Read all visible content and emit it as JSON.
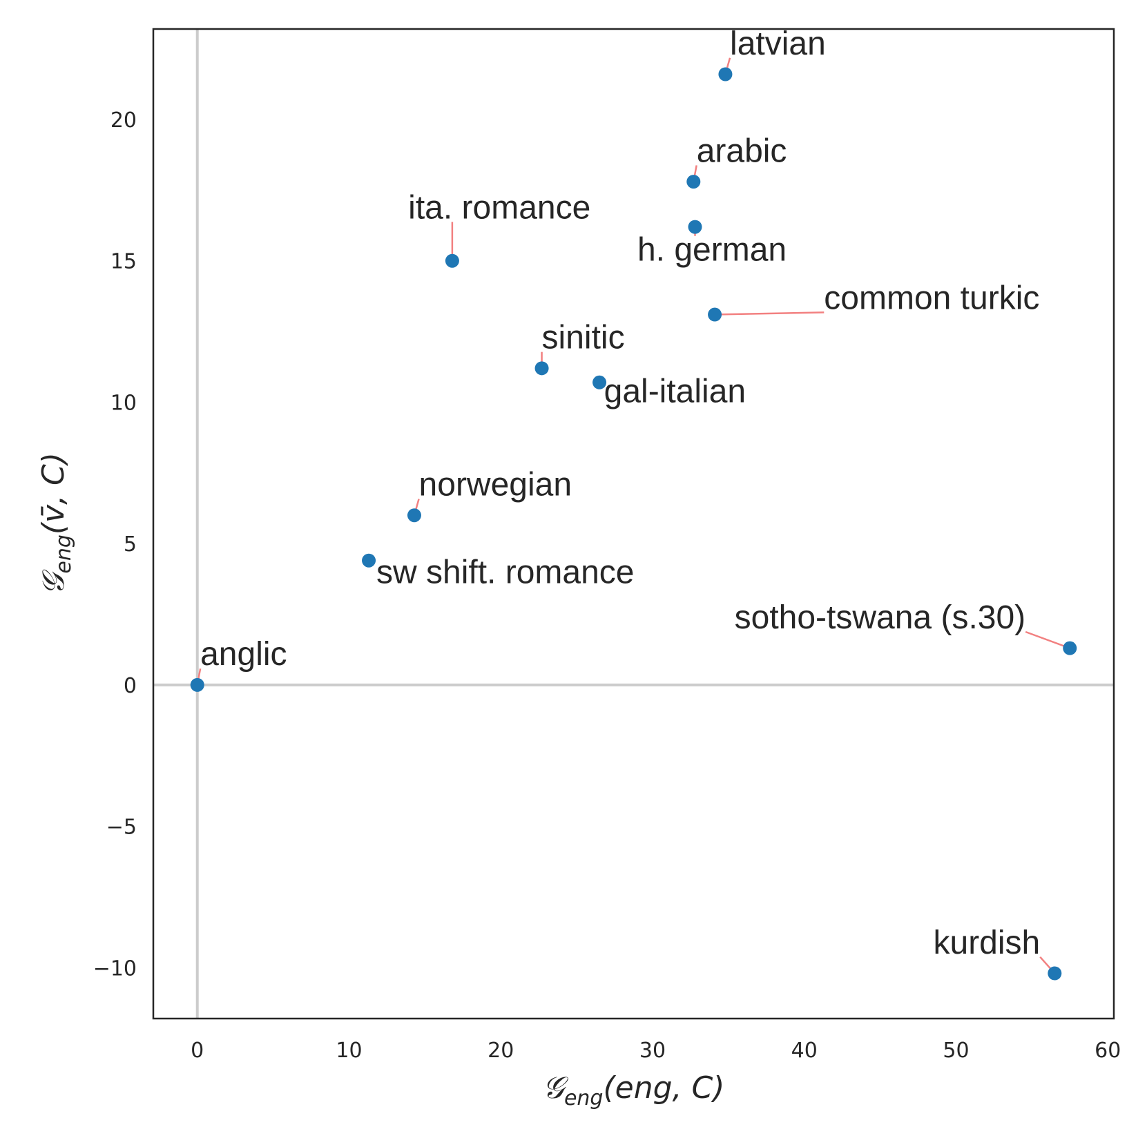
{
  "chart_data": {
    "type": "scatter",
    "title": "",
    "xlabel": {
      "main": "𝒢",
      "sub": "eng",
      "rest": "(eng, C)"
    },
    "ylabel": {
      "main": "𝒢",
      "sub": "eng",
      "rest": "(v̄, C)"
    },
    "xlim": [
      -2.9,
      60.4
    ],
    "ylim": [
      -11.8,
      23.2
    ],
    "xticks": [
      0,
      10,
      20,
      30,
      40,
      50,
      60
    ],
    "yticks": [
      -10,
      -5,
      0,
      5,
      10,
      15,
      20
    ],
    "xtick_labels": [
      "0",
      "10",
      "20",
      "30",
      "40",
      "50",
      "60"
    ],
    "ytick_labels": [
      "−10",
      "−5",
      "0",
      "5",
      "10",
      "15",
      "20"
    ],
    "grid": false,
    "reference_lines": {
      "x": 0,
      "y": 0
    },
    "colors": {
      "point": "#1f77b4",
      "leader": "#f28080",
      "refline": "#cccccc",
      "frame": "#262626"
    },
    "points": [
      {
        "label": "latvian",
        "x": 34.8,
        "y": 21.6,
        "lx": 35.1,
        "ly": 22.3,
        "anchor": "start"
      },
      {
        "label": "arabic",
        "x": 32.7,
        "y": 17.8,
        "lx": 32.9,
        "ly": 18.5,
        "anchor": "start"
      },
      {
        "label": "ita. romance",
        "x": 16.8,
        "y": 15.0,
        "lx": 13.9,
        "ly": 16.5,
        "anchor": "start"
      },
      {
        "label": "h. german",
        "x": 32.8,
        "y": 16.2,
        "lx": 29.0,
        "ly": 15.0,
        "anchor": "start"
      },
      {
        "label": "common turkic",
        "x": 34.1,
        "y": 13.1,
        "lx": 41.3,
        "ly": 13.3,
        "anchor": "start"
      },
      {
        "label": "sinitic",
        "x": 22.7,
        "y": 11.2,
        "lx": 22.7,
        "ly": 11.9,
        "anchor": "start"
      },
      {
        "label": "gal-italian",
        "x": 26.5,
        "y": 10.7,
        "lx": 26.8,
        "ly": 10.0,
        "anchor": "start"
      },
      {
        "label": "norwegian",
        "x": 14.3,
        "y": 6.0,
        "lx": 14.6,
        "ly": 6.7,
        "anchor": "start"
      },
      {
        "label": "sw shift. romance",
        "x": 11.3,
        "y": 4.4,
        "lx": 11.8,
        "ly": 3.6,
        "anchor": "start"
      },
      {
        "label": "sotho-tswana (s.30)",
        "x": 57.5,
        "y": 1.3,
        "lx": 35.4,
        "ly": 2.0,
        "anchor": "start"
      },
      {
        "label": "anglic",
        "x": 0.0,
        "y": 0.0,
        "lx": 0.2,
        "ly": 0.7,
        "anchor": "start"
      },
      {
        "label": "kurdish",
        "x": 56.5,
        "y": -10.2,
        "lx": 48.5,
        "ly": -9.5,
        "anchor": "start"
      }
    ]
  }
}
